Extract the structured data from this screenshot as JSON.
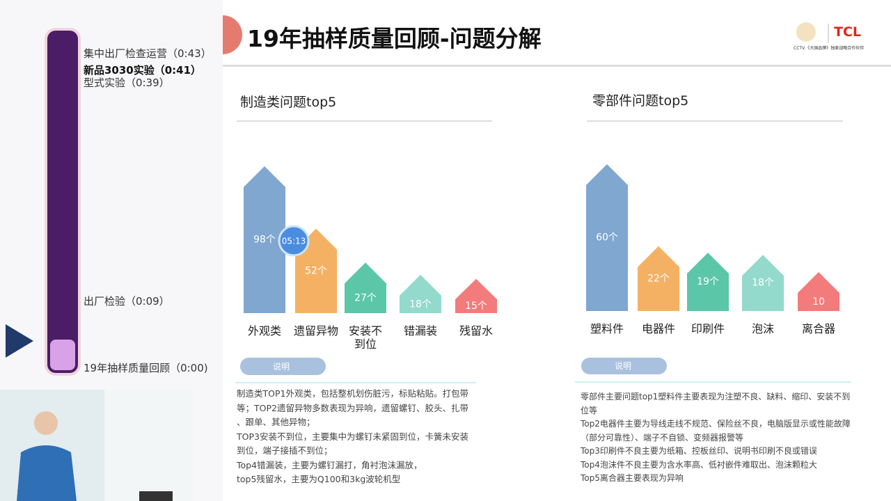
{
  "sidebar": {
    "chapters": [
      "集中出厂检查运营（0:43）",
      "新品3030实验（0:41）",
      "型式实验（0:39）",
      "出厂检验（0:09）",
      "19年抽样质量回顾（0:00)"
    ]
  },
  "player": {
    "bubble_time": "05:13"
  },
  "slide": {
    "title": "19年抽样质量回顾-问题分解",
    "logo_brand": "TCL",
    "logo_caption": "CCTV.《大国品牌》独家战略合作伙伴"
  },
  "chart_data": [
    {
      "type": "bar",
      "title": "制造类问题top5",
      "categories": [
        "外观类",
        "遗留异物",
        "安装不到位",
        "错漏装",
        "残留水"
      ],
      "values": [
        98,
        52,
        27,
        18,
        15
      ],
      "value_labels": [
        "98个",
        "52个",
        "27个",
        "18个",
        "15个"
      ],
      "colors": [
        "#7fa7d0",
        "#f5b163",
        "#5cc6a9",
        "#93dacd",
        "#f47b7b"
      ]
    },
    {
      "type": "bar",
      "title": "零部件问题top5",
      "categories": [
        "塑料件",
        "电器件",
        "印刷件",
        "泡沫",
        "离合器"
      ],
      "values": [
        60,
        22,
        19,
        18,
        10
      ],
      "value_labels": [
        "60个",
        "22个",
        "19个",
        "18个",
        "10"
      ],
      "colors": [
        "#7fa7d0",
        "#f5b163",
        "#5cc6a9",
        "#93dacd",
        "#f47b7b"
      ]
    }
  ],
  "notes": [
    {
      "button": "说明",
      "lines": [
        "制造类TOP1外观类，包括整机划伤脏污，标贴粘贴。打包带",
        "等；TOP2遗留异物多数表现为异响，遗留螺钉、胶头、扎带",
        "、跟单、其他异物；",
        "TOP3安装不到位，主要集中为螺钉未紧固到位，卡簧未安装",
        "到位，端子接插不到位；",
        "Top4错漏装，主要为螺钉漏打，角衬泡沫漏放，",
        "top5残留水，主要为Q100和3kg波轮机型"
      ]
    },
    {
      "button": "说明",
      "lines": [
        "零部件主要问题top1塑料件主要表现为注塑不良、缺料、缩印、安装不到",
        "位等",
        "Top2电器件主要为导线走线不规范、保险丝不良，电脑版显示或性能故障",
        "（部分可靠性）、端子不自锁、变频器报警等",
        "Top3印刷件不良主要为纸箱、控板丝印、说明书印刷不良或错误",
        "Top4泡沫件不良主要为含水率高、低衬嵌件难取出、泡沫颗粒大",
        "Top5离合器主要表现为异响"
      ]
    }
  ]
}
